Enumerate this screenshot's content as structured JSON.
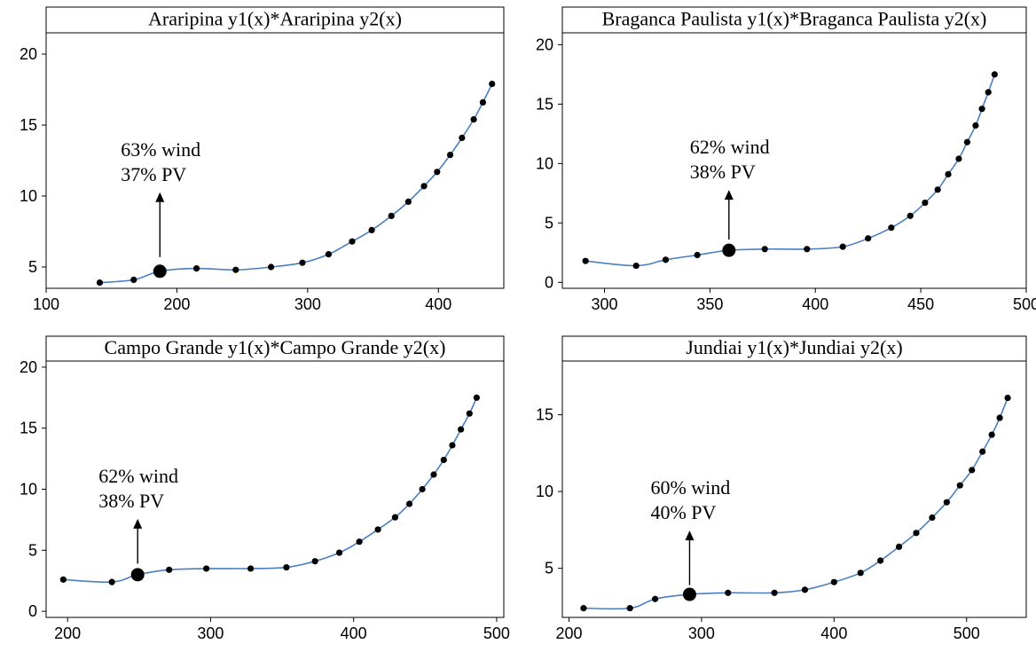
{
  "chart_data": [
    {
      "type": "line",
      "title": "Araripina y1(x)*Araripina y2(x)",
      "xlim": [
        100,
        450
      ],
      "ylim": [
        3.5,
        21.5
      ],
      "xticks": [
        100,
        200,
        300,
        400
      ],
      "yticks": [
        5,
        10,
        15,
        20
      ],
      "x": [
        141,
        167,
        187,
        215,
        245,
        272,
        296,
        316,
        334,
        349,
        364,
        377,
        389,
        399,
        409,
        418,
        427,
        434,
        441
      ],
      "y": [
        3.9,
        4.1,
        4.7,
        4.9,
        4.8,
        5.0,
        5.3,
        5.9,
        6.8,
        7.6,
        8.6,
        9.6,
        10.7,
        11.7,
        12.9,
        14.1,
        15.4,
        16.6,
        17.9
      ],
      "highlight": {
        "x": 187,
        "y": 4.7
      },
      "annotation": {
        "line1": "63% wind",
        "line2": "37% PV",
        "arrow_tail_y": 5.7,
        "arrow_head_y": 10.2
      }
    },
    {
      "type": "line",
      "title": "Braganca Paulista y1(x)*Braganca Paulista y2(x)",
      "xlim": [
        280,
        500
      ],
      "ylim": [
        -0.5,
        21.0
      ],
      "xticks": [
        300,
        350,
        400,
        450,
        500
      ],
      "yticks": [
        0,
        5,
        10,
        15,
        20
      ],
      "x": [
        291,
        315,
        329,
        344,
        359,
        376,
        396,
        413,
        425,
        436,
        445,
        452,
        458,
        463,
        468,
        472,
        476,
        479,
        482,
        485
      ],
      "y": [
        1.8,
        1.4,
        1.9,
        2.3,
        2.7,
        2.8,
        2.8,
        3.0,
        3.7,
        4.6,
        5.6,
        6.7,
        7.8,
        9.1,
        10.4,
        11.8,
        13.2,
        14.6,
        16.0,
        17.5
      ],
      "highlight": {
        "x": 359,
        "y": 2.7
      },
      "annotation": {
        "line1": "62% wind",
        "line2": "38% PV",
        "arrow_tail_y": 3.6,
        "arrow_head_y": 7.7
      }
    },
    {
      "type": "line",
      "title": "Campo Grande y1(x)*Campo Grande y2(x)",
      "xlim": [
        185,
        505
      ],
      "ylim": [
        -0.5,
        20.5
      ],
      "xticks": [
        200,
        300,
        400,
        500
      ],
      "yticks": [
        0,
        5,
        10,
        15,
        20
      ],
      "x": [
        197,
        231,
        249,
        271,
        297,
        328,
        353,
        373,
        390,
        404,
        417,
        429,
        439,
        448,
        456,
        463,
        469,
        475,
        481,
        486
      ],
      "y": [
        2.6,
        2.4,
        3.0,
        3.4,
        3.5,
        3.5,
        3.6,
        4.1,
        4.8,
        5.7,
        6.7,
        7.7,
        8.8,
        10.0,
        11.2,
        12.4,
        13.6,
        14.9,
        16.2,
        17.5
      ],
      "highlight": {
        "x": 249,
        "y": 3.0
      },
      "annotation": {
        "line1": "62% wind",
        "line2": "38% PV",
        "arrow_tail_y": 3.9,
        "arrow_head_y": 7.5
      }
    },
    {
      "type": "line",
      "title": "Jundiai y1(x)*Jundiai y2(x)",
      "xlim": [
        195,
        545
      ],
      "ylim": [
        1.8,
        18.5
      ],
      "xticks": [
        200,
        300,
        400,
        500
      ],
      "yticks": [
        5,
        10,
        15
      ],
      "x": [
        211,
        246,
        265,
        291,
        320,
        355,
        378,
        400,
        420,
        435,
        449,
        462,
        474,
        485,
        495,
        504,
        512,
        519,
        525,
        531
      ],
      "y": [
        2.4,
        2.4,
        3.0,
        3.3,
        3.4,
        3.4,
        3.6,
        4.1,
        4.7,
        5.5,
        6.4,
        7.3,
        8.3,
        9.3,
        10.4,
        11.4,
        12.6,
        13.7,
        14.8,
        16.1
      ],
      "highlight": {
        "x": 291,
        "y": 3.3
      },
      "annotation": {
        "line1": "60% wind",
        "line2": "40% PV",
        "arrow_tail_y": 3.9,
        "arrow_head_y": 7.4
      }
    }
  ]
}
